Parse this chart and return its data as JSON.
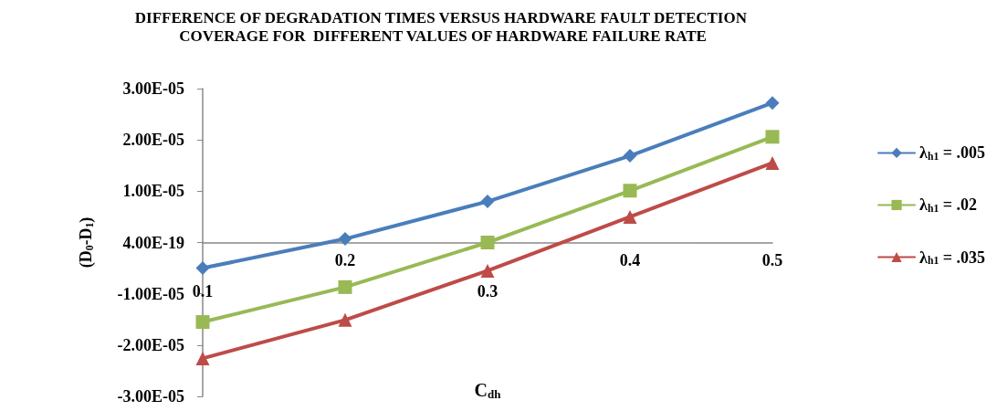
{
  "chart_data": {
    "type": "line",
    "title": "DIFFERENCE OF DEGRADATION TIMES VERSUS HARDWARE FAULT DETECTION COVERAGE FOR  DIFFERENT VALUES OF HARDWARE FAILURE RATE",
    "xlabel": "C$_{dh}$",
    "ylabel": "(D$_{0}$-D$_{1}$)",
    "categories": [
      "0.1",
      "0.2",
      "0.3",
      "0.4",
      "0.5"
    ],
    "series": [
      {
        "name": "λ$_{h1}$ = .005",
        "color": "#4a7ebb",
        "marker": "diamond",
        "values": [
          -5e-06,
          7e-07,
          8e-06,
          1.69e-05,
          2.72e-05
        ]
      },
      {
        "name": "λ$_{h1}$ = .02",
        "color": "#98b954",
        "marker": "square",
        "values": [
          -1.55e-05,
          -8.7e-06,
          0.0,
          1.01e-05,
          2.06e-05
        ]
      },
      {
        "name": "λ$_{h1}$ = .035",
        "color": "#be4b48",
        "marker": "triangle",
        "values": [
          -2.26e-05,
          -1.51e-05,
          -5.5e-06,
          5e-06,
          1.55e-05
        ]
      }
    ],
    "ylim": [
      -3e-05,
      3e-05
    ],
    "yticks": [
      {
        "value": -3e-05,
        "label": "-3.00E-05"
      },
      {
        "value": -2e-05,
        "label": "-2.00E-05"
      },
      {
        "value": -1e-05,
        "label": "-1.00E-05"
      },
      {
        "value": 0,
        "label": "4.00E-19"
      },
      {
        "value": 1e-05,
        "label": "1.00E-05"
      },
      {
        "value": 2e-05,
        "label": "2.00E-05"
      },
      {
        "value": 3e-05,
        "label": "3.00E-05"
      }
    ],
    "grid": false,
    "legend": "right",
    "line_style": "solid"
  }
}
